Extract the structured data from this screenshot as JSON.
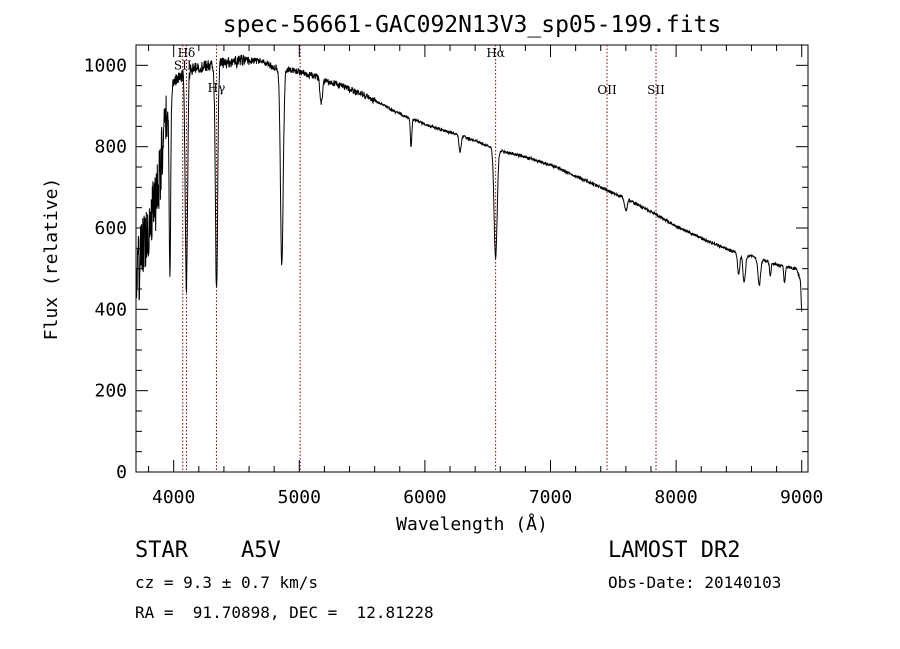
{
  "chart_data": {
    "type": "line",
    "title": "spec-56661-GAC092N13V3_sp05-199.fits",
    "xlabel": "Wavelength (Å)",
    "ylabel": "Flux (relative)",
    "xlim": [
      3700,
      9050
    ],
    "ylim": [
      0,
      1050
    ],
    "xticks": [
      4000,
      5000,
      6000,
      7000,
      8000,
      9000
    ],
    "xtick_labels": [
      "4000",
      "5000",
      "6000",
      "7000",
      "8000",
      "9000"
    ],
    "yticks": [
      0,
      200,
      400,
      600,
      800,
      1000
    ],
    "ytick_labels": [
      "0",
      "200",
      "400",
      "600",
      "800",
      "1000"
    ],
    "grid": false,
    "line_color": "#000000",
    "marker_color": "#8b0000",
    "continuum": [
      [
        3700,
        470
      ],
      [
        3760,
        560
      ],
      [
        3800,
        610
      ],
      [
        3850,
        660
      ],
      [
        3900,
        760
      ],
      [
        3950,
        880
      ],
      [
        4000,
        960
      ],
      [
        4100,
        985
      ],
      [
        4200,
        995
      ],
      [
        4300,
        1000
      ],
      [
        4400,
        1005
      ],
      [
        4550,
        1012
      ],
      [
        4700,
        1010
      ],
      [
        4800,
        995
      ],
      [
        5000,
        985
      ],
      [
        5200,
        965
      ],
      [
        5500,
        930
      ],
      [
        5800,
        880
      ],
      [
        6000,
        855
      ],
      [
        6200,
        835
      ],
      [
        6400,
        815
      ],
      [
        6600,
        790
      ],
      [
        6800,
        775
      ],
      [
        7000,
        755
      ],
      [
        7200,
        728
      ],
      [
        7400,
        700
      ],
      [
        7600,
        672
      ],
      [
        7800,
        640
      ],
      [
        8000,
        605
      ],
      [
        8200,
        575
      ],
      [
        8400,
        548
      ],
      [
        8600,
        530
      ],
      [
        8800,
        510
      ],
      [
        8960,
        500
      ],
      [
        8990,
        470
      ],
      [
        9000,
        390
      ]
    ],
    "absorption_lines": [
      {
        "center": 3970,
        "depth": 420,
        "width": 6
      },
      {
        "center": 4101,
        "depth": 540,
        "width": 9
      },
      {
        "center": 4341,
        "depth": 560,
        "width": 9
      },
      {
        "center": 4861,
        "depth": 480,
        "width": 11
      },
      {
        "center": 5175,
        "depth": 60,
        "width": 10
      },
      {
        "center": 5890,
        "depth": 70,
        "width": 6
      },
      {
        "center": 6280,
        "depth": 40,
        "width": 8
      },
      {
        "center": 6563,
        "depth": 270,
        "width": 12
      },
      {
        "center": 7600,
        "depth": 30,
        "width": 10
      },
      {
        "center": 8498,
        "depth": 55,
        "width": 9
      },
      {
        "center": 8542,
        "depth": 70,
        "width": 10
      },
      {
        "center": 8662,
        "depth": 65,
        "width": 10
      },
      {
        "center": 8750,
        "depth": 35,
        "width": 6
      },
      {
        "center": 8863,
        "depth": 40,
        "width": 6
      }
    ],
    "line_markers": [
      {
        "label": "Hδ",
        "wavelength": 4101.7,
        "label_y": 1020
      },
      {
        "label": "SII",
        "wavelength": 4072,
        "label_y": 990
      },
      {
        "label": "Hγ",
        "wavelength": 4340.5,
        "label_y": 935
      },
      {
        "label": "",
        "wavelength": 5007,
        "label_y": 0
      },
      {
        "label": "Hα",
        "wavelength": 6563,
        "label_y": 1020
      },
      {
        "label": "OII",
        "wavelength": 7450,
        "label_y": 930
      },
      {
        "label": "SII",
        "wavelength": 7840,
        "label_y": 930
      }
    ]
  },
  "info": {
    "object_class": "STAR",
    "subclass": "A5V",
    "survey": "LAMOST DR2",
    "redshift_line": "cz = 9.3 ± 0.7 km/s",
    "obs_date": "Obs-Date: 20140103",
    "coords": "RA =  91.70898, DEC =  12.81228"
  }
}
